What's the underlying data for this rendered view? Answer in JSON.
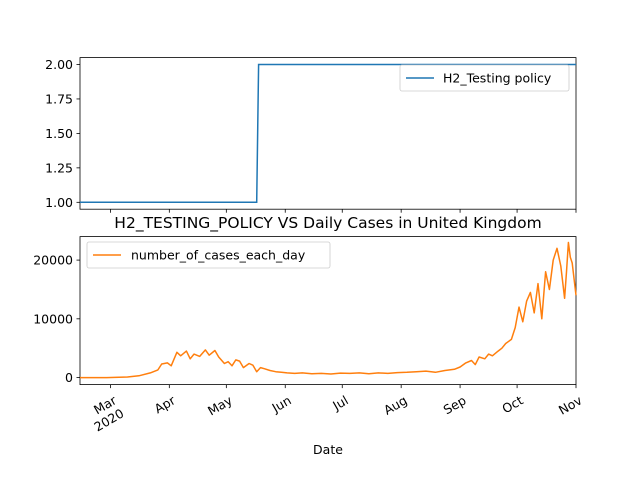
{
  "chart_data": [
    {
      "type": "line",
      "title": "",
      "xlabel": "",
      "ylabel": "",
      "ylim": [
        0.95,
        2.05
      ],
      "yticks": [
        "1.00",
        "1.25",
        "1.50",
        "1.75",
        "2.00"
      ],
      "yticks_values": [
        1.0,
        1.25,
        1.5,
        1.75,
        2.0
      ],
      "x_range": [
        "2020-02-14",
        "2020-11-01"
      ],
      "grid": false,
      "legend": "upper-right",
      "series": [
        {
          "name": "H2_Testing policy",
          "color": "#1f77b4",
          "x": [
            "2020-02-14",
            "2020-05-17",
            "2020-05-18",
            "2020-11-01"
          ],
          "values": [
            1,
            1,
            2,
            2
          ]
        }
      ]
    },
    {
      "type": "line",
      "title": "H2_TESTING_POLICY VS Daily Cases in United Kingdom",
      "xlabel": "Date",
      "ylabel": "",
      "ylim": [
        -1200,
        24000
      ],
      "yticks": [
        "0",
        "10000",
        "20000"
      ],
      "yticks_values": [
        0,
        10000,
        20000
      ],
      "xticks": [
        "Mar\n2020",
        "Apr",
        "May",
        "Jun",
        "Jul",
        "Aug",
        "Sep",
        "Oct",
        "Nov"
      ],
      "x_range": [
        "2020-02-14",
        "2020-11-01"
      ],
      "grid": false,
      "legend": "upper-left",
      "series": [
        {
          "name": "number_of_cases_each_day",
          "color": "#ff7f0e",
          "x": [
            "2020-02-14",
            "2020-02-28",
            "2020-03-10",
            "2020-03-16",
            "2020-03-22",
            "2020-03-26",
            "2020-03-28",
            "2020-03-31",
            "2020-04-02",
            "2020-04-05",
            "2020-04-07",
            "2020-04-10",
            "2020-04-12",
            "2020-04-14",
            "2020-04-17",
            "2020-04-20",
            "2020-04-22",
            "2020-04-25",
            "2020-04-27",
            "2020-04-30",
            "2020-05-02",
            "2020-05-04",
            "2020-05-06",
            "2020-05-08",
            "2020-05-10",
            "2020-05-13",
            "2020-05-15",
            "2020-05-17",
            "2020-05-19",
            "2020-05-21",
            "2020-05-24",
            "2020-05-27",
            "2020-05-30",
            "2020-06-02",
            "2020-06-06",
            "2020-06-10",
            "2020-06-15",
            "2020-06-20",
            "2020-06-25",
            "2020-06-30",
            "2020-07-05",
            "2020-07-10",
            "2020-07-15",
            "2020-07-20",
            "2020-07-25",
            "2020-07-30",
            "2020-08-04",
            "2020-08-09",
            "2020-08-14",
            "2020-08-19",
            "2020-08-24",
            "2020-08-29",
            "2020-09-01",
            "2020-09-04",
            "2020-09-07",
            "2020-09-09",
            "2020-09-11",
            "2020-09-14",
            "2020-09-16",
            "2020-09-18",
            "2020-09-21",
            "2020-09-23",
            "2020-09-25",
            "2020-09-28",
            "2020-09-30",
            "2020-10-02",
            "2020-10-04",
            "2020-10-06",
            "2020-10-08",
            "2020-10-10",
            "2020-10-12",
            "2020-10-14",
            "2020-10-16",
            "2020-10-18",
            "2020-10-20",
            "2020-10-22",
            "2020-10-24",
            "2020-10-26",
            "2020-10-27",
            "2020-10-28",
            "2020-10-29",
            "2020-10-30",
            "2020-11-01"
          ],
          "values": [
            0,
            0,
            100,
            300,
            800,
            1300,
            2300,
            2500,
            2000,
            4300,
            3700,
            4500,
            3200,
            4000,
            3600,
            4700,
            3800,
            4600,
            3500,
            2400,
            2700,
            2000,
            3000,
            2800,
            1700,
            2400,
            2100,
            1000,
            1700,
            1500,
            1200,
            1000,
            900,
            800,
            700,
            800,
            650,
            700,
            600,
            750,
            700,
            800,
            650,
            800,
            700,
            850,
            900,
            1000,
            1100,
            900,
            1200,
            1400,
            1800,
            2500,
            2900,
            2200,
            3500,
            3200,
            4000,
            3700,
            4500,
            5000,
            5800,
            6500,
            8500,
            12000,
            9500,
            13000,
            14500,
            11000,
            16000,
            10000,
            18000,
            15000,
            20000,
            22000,
            19000,
            13500,
            18000,
            23000,
            20500,
            19500,
            14000
          ]
        }
      ]
    }
  ]
}
